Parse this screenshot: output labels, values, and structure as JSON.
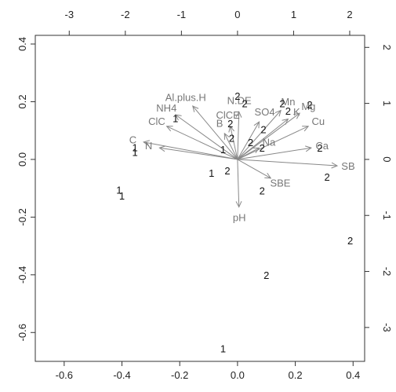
{
  "chart_data": {
    "type": "scatter",
    "title": "",
    "xlabel": "",
    "ylabel": "",
    "xlim": [
      -0.7,
      0.44
    ],
    "ylim": [
      -0.7,
      0.43
    ],
    "x_ticks": [
      "-0.6",
      "-0.4",
      "-0.2",
      "0.0",
      "0.2",
      "0.4"
    ],
    "y_ticks": [
      "-0.6",
      "-0.4",
      "-0.2",
      "0.0",
      "0.2",
      "0.4"
    ],
    "secondary_x_ticks": [
      "-3",
      "-2",
      "-1",
      "0",
      "1",
      "2"
    ],
    "secondary_y_ticks": [
      "-3",
      "-2",
      "-1",
      "0",
      "1",
      "2"
    ],
    "secondary_scale": 5.15,
    "grid": false,
    "observations": [
      {
        "label": "1",
        "x": -0.41,
        "y": -0.105
      },
      {
        "label": "1",
        "x": -0.4,
        "y": -0.125
      },
      {
        "label": "1",
        "x": -0.355,
        "y": 0.025
      },
      {
        "label": "1",
        "x": -0.355,
        "y": 0.042
      },
      {
        "label": "1",
        "x": -0.215,
        "y": 0.143
      },
      {
        "label": "1",
        "x": -0.09,
        "y": -0.047
      },
      {
        "label": "1",
        "x": -0.05,
        "y": 0.035
      },
      {
        "label": "1",
        "x": -0.05,
        "y": -0.655
      },
      {
        "label": "2",
        "x": -0.035,
        "y": -0.038
      },
      {
        "label": "2",
        "x": 0.0,
        "y": 0.22
      },
      {
        "label": "2",
        "x": 0.025,
        "y": 0.195
      },
      {
        "label": "2",
        "x": -0.025,
        "y": 0.125
      },
      {
        "label": "2",
        "x": -0.02,
        "y": 0.075
      },
      {
        "label": "2",
        "x": 0.045,
        "y": 0.06
      },
      {
        "label": "2",
        "x": 0.09,
        "y": 0.105
      },
      {
        "label": "2",
        "x": 0.085,
        "y": 0.04
      },
      {
        "label": "2",
        "x": 0.155,
        "y": 0.195
      },
      {
        "label": "2",
        "x": 0.175,
        "y": 0.168
      },
      {
        "label": "2",
        "x": 0.25,
        "y": 0.19
      },
      {
        "label": "2",
        "x": 0.085,
        "y": -0.108
      },
      {
        "label": "2",
        "x": 0.1,
        "y": -0.4
      },
      {
        "label": "2",
        "x": 0.285,
        "y": 0.04
      },
      {
        "label": "2",
        "x": 0.31,
        "y": -0.06
      },
      {
        "label": "2",
        "x": 0.39,
        "y": -0.28
      }
    ],
    "variables": [
      {
        "name": "Al.plus.H",
        "x": -0.155,
        "y": 0.185
      },
      {
        "name": "NH4",
        "x": -0.215,
        "y": 0.155
      },
      {
        "name": "ClC",
        "x": -0.245,
        "y": 0.115
      },
      {
        "name": "C",
        "x": -0.325,
        "y": 0.06
      },
      {
        "name": "N",
        "x": -0.27,
        "y": 0.04
      },
      {
        "name": "N.DE",
        "x": 0.005,
        "y": 0.165
      },
      {
        "name": "ClCE",
        "x": -0.025,
        "y": 0.115
      },
      {
        "name": "B",
        "x": -0.045,
        "y": 0.09
      },
      {
        "name": "SO4",
        "x": 0.075,
        "y": 0.13
      },
      {
        "name": "Mn",
        "x": 0.15,
        "y": 0.17
      },
      {
        "name": "K",
        "x": 0.175,
        "y": 0.14
      },
      {
        "name": "Mg",
        "x": 0.215,
        "y": 0.16
      },
      {
        "name": "Cu",
        "x": 0.245,
        "y": 0.115
      },
      {
        "name": "Na",
        "x": 0.075,
        "y": 0.04
      },
      {
        "name": "Ca",
        "x": 0.255,
        "y": 0.04
      },
      {
        "name": "SB",
        "x": 0.345,
        "y": -0.022
      },
      {
        "name": "SBE",
        "x": 0.115,
        "y": -0.065
      },
      {
        "name": "pH",
        "x": 0.005,
        "y": -0.165
      }
    ]
  }
}
